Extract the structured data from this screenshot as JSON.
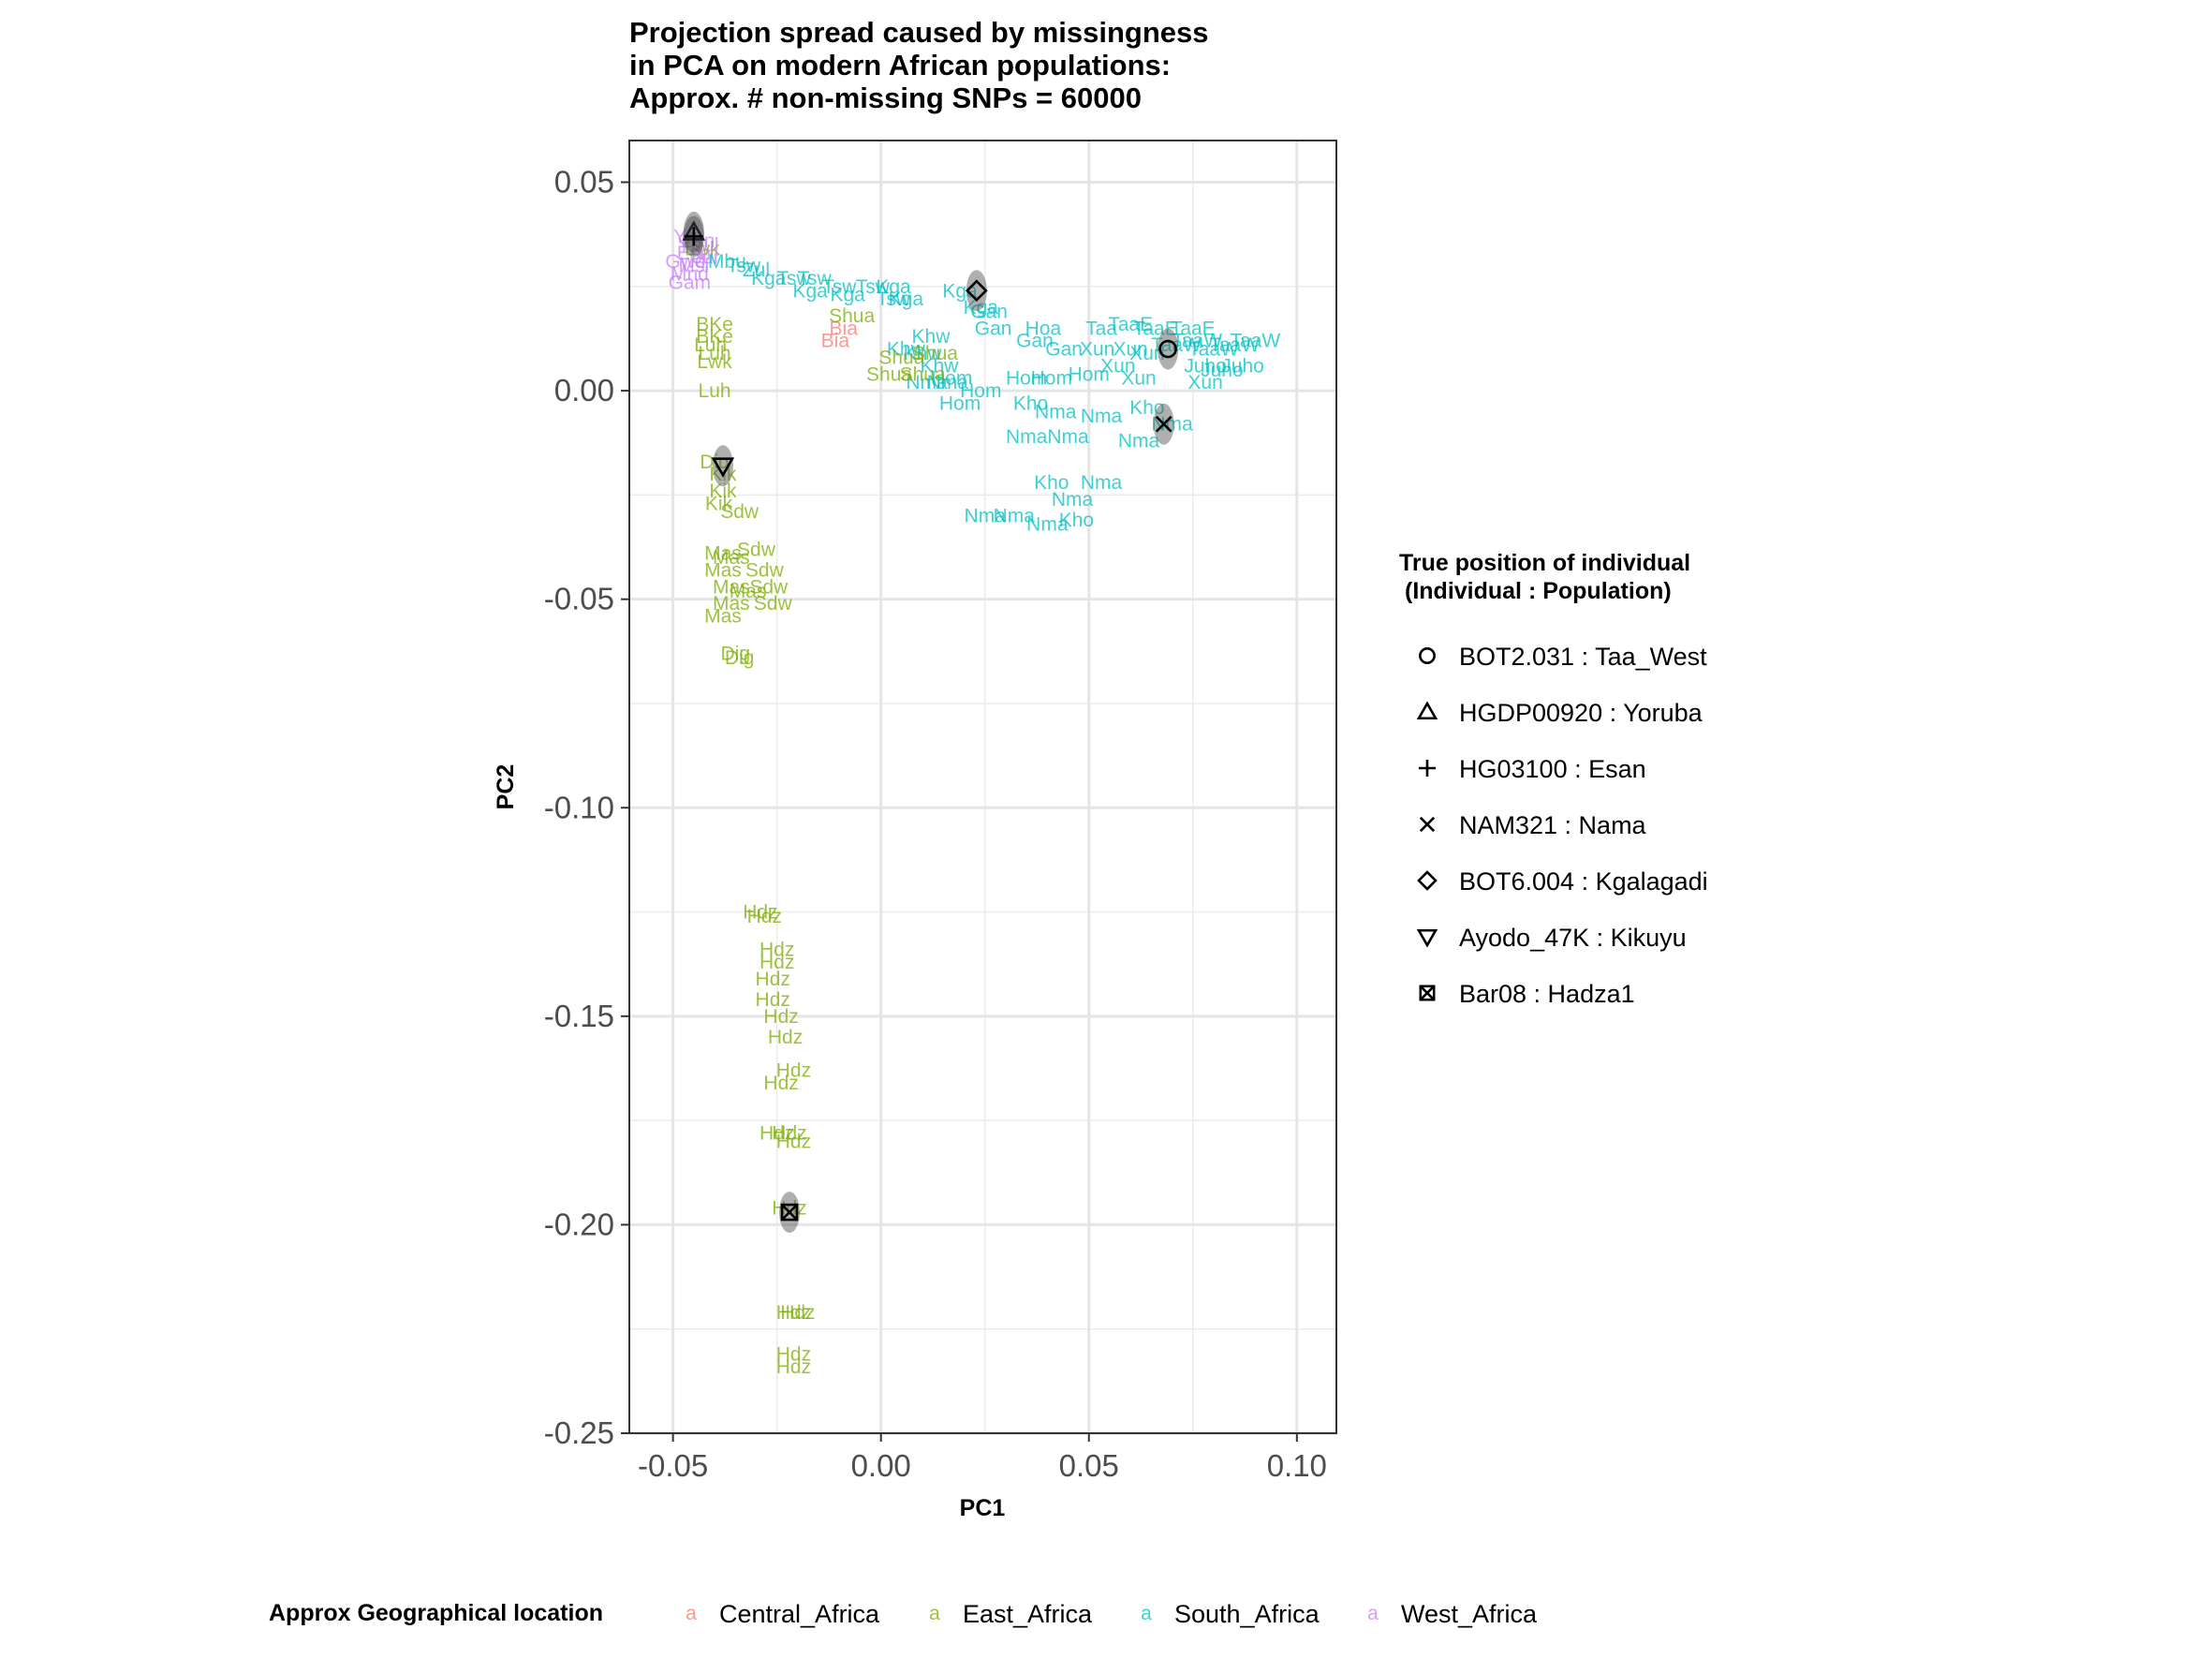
{
  "chart_data": {
    "type": "scatter",
    "title": "Projection spread caused by missingness\nin PCA on modern African populations:\nApprox. # non-missing SNPs = 60000",
    "xlabel": "PC1",
    "ylabel": "PC2",
    "xlim": [
      -0.0605,
      0.1095
    ],
    "ylim": [
      -0.25,
      0.06
    ],
    "xticks": [
      -0.05,
      0.0,
      0.05,
      0.1
    ],
    "xtick_labels": [
      "-0.05",
      "0.00",
      "0.05",
      "0.10"
    ],
    "yticks": [
      0.05,
      0.0,
      -0.05,
      -0.1,
      -0.15,
      -0.2,
      -0.25
    ],
    "ytick_labels": [
      "0.05",
      "0.00",
      "-0.05",
      "-0.10",
      "-0.15",
      "-0.20",
      "-0.25"
    ],
    "grid": true,
    "region_legend": {
      "title": "Approx Geographical location",
      "position": "bottom",
      "entries": [
        {
          "name": "Central_Africa",
          "color": "#F8766D"
        },
        {
          "name": "East_Africa",
          "color": "#7CAE00"
        },
        {
          "name": "South_Africa",
          "color": "#00BFC4"
        },
        {
          "name": "West_Africa",
          "color": "#C77CFF"
        }
      ]
    },
    "individual_legend": {
      "title": "True position of individual\n(Individual : Population)",
      "position": "right",
      "entries": [
        {
          "label": "BOT2.031 : Taa_West",
          "shape": "circle",
          "x": 0.069,
          "y": 0.01
        },
        {
          "label": "HGDP00920 : Yoruba",
          "shape": "triangle-up",
          "x": -0.045,
          "y": 0.038
        },
        {
          "label": "HG03100 : Esan",
          "shape": "plus",
          "x": -0.045,
          "y": 0.037
        },
        {
          "label": "NAM321 : Nama",
          "shape": "cross",
          "x": 0.068,
          "y": -0.008
        },
        {
          "label": "BOT6.004 : Kgalagadi",
          "shape": "diamond",
          "x": 0.023,
          "y": 0.024
        },
        {
          "label": "Ayodo_47K : Kikuyu",
          "shape": "triangle-down",
          "x": -0.038,
          "y": -0.018
        },
        {
          "label": "Bar08 : Hadza1",
          "shape": "square-cross",
          "x": -0.022,
          "y": -0.197
        }
      ]
    },
    "points": [
      {
        "label": "Yri",
        "region": "West_Africa",
        "x": -0.047,
        "y": 0.037
      },
      {
        "label": "Yri",
        "region": "West_Africa",
        "x": -0.046,
        "y": 0.035
      },
      {
        "label": "Esn",
        "region": "West_Africa",
        "x": -0.045,
        "y": 0.033
      },
      {
        "label": "Esn",
        "region": "West_Africa",
        "x": -0.044,
        "y": 0.036
      },
      {
        "label": "Gwd",
        "region": "West_Africa",
        "x": -0.047,
        "y": 0.031
      },
      {
        "label": "Msl",
        "region": "West_Africa",
        "x": -0.045,
        "y": 0.03
      },
      {
        "label": "Mnd",
        "region": "West_Africa",
        "x": -0.046,
        "y": 0.028
      },
      {
        "label": "Gam",
        "region": "West_Africa",
        "x": -0.046,
        "y": 0.026
      },
      {
        "label": "Lwk",
        "region": "East_Africa",
        "x": -0.043,
        "y": 0.034
      },
      {
        "label": "Jul",
        "region": "West_Africa",
        "x": -0.042,
        "y": 0.035
      },
      {
        "label": "Jur",
        "region": "West_Africa",
        "x": -0.042,
        "y": 0.032
      },
      {
        "label": "Mbu",
        "region": "South_Africa",
        "x": -0.037,
        "y": 0.031
      },
      {
        "label": "Tsw",
        "region": "South_Africa",
        "x": -0.033,
        "y": 0.03
      },
      {
        "label": "Zul",
        "region": "South_Africa",
        "x": -0.03,
        "y": 0.029
      },
      {
        "label": "Kga",
        "region": "South_Africa",
        "x": -0.027,
        "y": 0.027
      },
      {
        "label": "Tsw",
        "region": "South_Africa",
        "x": -0.021,
        "y": 0.027
      },
      {
        "label": "Tsw",
        "region": "South_Africa",
        "x": -0.016,
        "y": 0.027
      },
      {
        "label": "Kga",
        "region": "South_Africa",
        "x": -0.017,
        "y": 0.024
      },
      {
        "label": "Tsw",
        "region": "South_Africa",
        "x": -0.01,
        "y": 0.025
      },
      {
        "label": "Kga",
        "region": "South_Africa",
        "x": -0.008,
        "y": 0.023
      },
      {
        "label": "Tsw",
        "region": "South_Africa",
        "x": -0.002,
        "y": 0.025
      },
      {
        "label": "Kga",
        "region": "South_Africa",
        "x": 0.003,
        "y": 0.025
      },
      {
        "label": "Kga",
        "region": "South_Africa",
        "x": 0.006,
        "y": 0.022
      },
      {
        "label": "Tsw",
        "region": "South_Africa",
        "x": 0.003,
        "y": 0.022
      },
      {
        "label": "Kga",
        "region": "South_Africa",
        "x": 0.019,
        "y": 0.024
      },
      {
        "label": "Kga",
        "region": "South_Africa",
        "x": 0.024,
        "y": 0.02
      },
      {
        "label": "Gan",
        "region": "South_Africa",
        "x": 0.026,
        "y": 0.019
      },
      {
        "label": "Gan",
        "region": "South_Africa",
        "x": 0.027,
        "y": 0.015
      },
      {
        "label": "Hoa",
        "region": "South_Africa",
        "x": 0.039,
        "y": 0.015
      },
      {
        "label": "Gan",
        "region": "South_Africa",
        "x": 0.037,
        "y": 0.012
      },
      {
        "label": "Gan",
        "region": "South_Africa",
        "x": 0.044,
        "y": 0.01
      },
      {
        "label": "Taa",
        "region": "South_Africa",
        "x": 0.053,
        "y": 0.015
      },
      {
        "label": "TaaE",
        "region": "South_Africa",
        "x": 0.06,
        "y": 0.016
      },
      {
        "label": "TaaE",
        "region": "South_Africa",
        "x": 0.066,
        "y": 0.015
      },
      {
        "label": "TaaE",
        "region": "South_Africa",
        "x": 0.075,
        "y": 0.015
      },
      {
        "label": "Xun",
        "region": "South_Africa",
        "x": 0.052,
        "y": 0.01
      },
      {
        "label": "Xun",
        "region": "South_Africa",
        "x": 0.057,
        "y": 0.006
      },
      {
        "label": "Xun",
        "region": "South_Africa",
        "x": 0.06,
        "y": 0.01
      },
      {
        "label": "Xun",
        "region": "South_Africa",
        "x": 0.064,
        "y": 0.009
      },
      {
        "label": "Hom",
        "region": "South_Africa",
        "x": 0.05,
        "y": 0.004
      },
      {
        "label": "Xun",
        "region": "South_Africa",
        "x": 0.062,
        "y": 0.003
      },
      {
        "label": "TaaW",
        "region": "South_Africa",
        "x": 0.071,
        "y": 0.011
      },
      {
        "label": "TaaW",
        "region": "South_Africa",
        "x": 0.076,
        "y": 0.012
      },
      {
        "label": "TaaW",
        "region": "South_Africa",
        "x": 0.08,
        "y": 0.01
      },
      {
        "label": "TaaW",
        "region": "South_Africa",
        "x": 0.085,
        "y": 0.011
      },
      {
        "label": "TaaW",
        "region": "South_Africa",
        "x": 0.09,
        "y": 0.012
      },
      {
        "label": "Juho",
        "region": "South_Africa",
        "x": 0.078,
        "y": 0.006
      },
      {
        "label": "Juho",
        "region": "South_Africa",
        "x": 0.082,
        "y": 0.005
      },
      {
        "label": "Juho",
        "region": "South_Africa",
        "x": 0.087,
        "y": 0.006
      },
      {
        "label": "Xun",
        "region": "South_Africa",
        "x": 0.078,
        "y": 0.002
      },
      {
        "label": "Khw",
        "region": "South_Africa",
        "x": 0.012,
        "y": 0.013
      },
      {
        "label": "Khw",
        "region": "South_Africa",
        "x": 0.006,
        "y": 0.01
      },
      {
        "label": "Khw",
        "region": "South_Africa",
        "x": 0.01,
        "y": 0.009
      },
      {
        "label": "Khw",
        "region": "South_Africa",
        "x": 0.014,
        "y": 0.006
      },
      {
        "label": "Nma",
        "region": "South_Africa",
        "x": 0.011,
        "y": 0.002
      },
      {
        "label": "Nma",
        "region": "South_Africa",
        "x": 0.016,
        "y": 0.002
      },
      {
        "label": "Hom",
        "region": "South_Africa",
        "x": 0.017,
        "y": 0.003
      },
      {
        "label": "Hom",
        "region": "South_Africa",
        "x": 0.024,
        "y": 0.0
      },
      {
        "label": "Hom",
        "region": "South_Africa",
        "x": 0.019,
        "y": -0.003
      },
      {
        "label": "Hom",
        "region": "South_Africa",
        "x": 0.035,
        "y": 0.003
      },
      {
        "label": "Hom",
        "region": "South_Africa",
        "x": 0.041,
        "y": 0.003
      },
      {
        "label": "Kho",
        "region": "South_Africa",
        "x": 0.036,
        "y": -0.003
      },
      {
        "label": "Nma",
        "region": "South_Africa",
        "x": 0.042,
        "y": -0.005
      },
      {
        "label": "Nma",
        "region": "South_Africa",
        "x": 0.053,
        "y": -0.006
      },
      {
        "label": "Nma",
        "region": "South_Africa",
        "x": 0.035,
        "y": -0.011
      },
      {
        "label": "Nma",
        "region": "South_Africa",
        "x": 0.045,
        "y": -0.011
      },
      {
        "label": "Kho",
        "region": "South_Africa",
        "x": 0.064,
        "y": -0.004
      },
      {
        "label": "Nma",
        "region": "South_Africa",
        "x": 0.07,
        "y": -0.008
      },
      {
        "label": "Nma",
        "region": "South_Africa",
        "x": 0.062,
        "y": -0.012
      },
      {
        "label": "Kho",
        "region": "South_Africa",
        "x": 0.041,
        "y": -0.022
      },
      {
        "label": "Nma",
        "region": "South_Africa",
        "x": 0.053,
        "y": -0.022
      },
      {
        "label": "Nma",
        "region": "South_Africa",
        "x": 0.046,
        "y": -0.026
      },
      {
        "label": "Nma",
        "region": "South_Africa",
        "x": 0.025,
        "y": -0.03
      },
      {
        "label": "Nma",
        "region": "South_Africa",
        "x": 0.032,
        "y": -0.03
      },
      {
        "label": "Nma",
        "region": "South_Africa",
        "x": 0.04,
        "y": -0.032
      },
      {
        "label": "Kho",
        "region": "South_Africa",
        "x": 0.047,
        "y": -0.031
      },
      {
        "label": "Bia",
        "region": "Central_Africa",
        "x": -0.009,
        "y": 0.015
      },
      {
        "label": "Bia",
        "region": "Central_Africa",
        "x": -0.011,
        "y": 0.012
      },
      {
        "label": "Shua",
        "region": "East_Africa",
        "x": -0.007,
        "y": 0.018
      },
      {
        "label": "Shua",
        "region": "East_Africa",
        "x": 0.005,
        "y": 0.008
      },
      {
        "label": "Shua",
        "region": "East_Africa",
        "x": 0.002,
        "y": 0.004
      },
      {
        "label": "Shua",
        "region": "East_Africa",
        "x": 0.01,
        "y": 0.004
      },
      {
        "label": "Shua",
        "region": "East_Africa",
        "x": 0.013,
        "y": 0.009
      },
      {
        "label": "BKe",
        "region": "East_Africa",
        "x": -0.04,
        "y": 0.016
      },
      {
        "label": "BKe",
        "region": "East_Africa",
        "x": -0.04,
        "y": 0.013
      },
      {
        "label": "Luh",
        "region": "East_Africa",
        "x": -0.041,
        "y": 0.011
      },
      {
        "label": "Luh",
        "region": "East_Africa",
        "x": -0.04,
        "y": 0.009
      },
      {
        "label": "Lwk",
        "region": "East_Africa",
        "x": -0.04,
        "y": 0.007
      },
      {
        "label": "Luh",
        "region": "East_Africa",
        "x": -0.04,
        "y": 0.0
      },
      {
        "label": "Dig",
        "region": "East_Africa",
        "x": -0.04,
        "y": -0.017
      },
      {
        "label": "Kik",
        "region": "East_Africa",
        "x": -0.038,
        "y": -0.02
      },
      {
        "label": "Kik",
        "region": "East_Africa",
        "x": -0.038,
        "y": -0.024
      },
      {
        "label": "Kik",
        "region": "East_Africa",
        "x": -0.039,
        "y": -0.027
      },
      {
        "label": "Sdw",
        "region": "East_Africa",
        "x": -0.034,
        "y": -0.029
      },
      {
        "label": "Sdw",
        "region": "East_Africa",
        "x": -0.03,
        "y": -0.038
      },
      {
        "label": "Mas",
        "region": "East_Africa",
        "x": -0.038,
        "y": -0.039
      },
      {
        "label": "Mas",
        "region": "East_Africa",
        "x": -0.036,
        "y": -0.04
      },
      {
        "label": "Mas",
        "region": "East_Africa",
        "x": -0.038,
        "y": -0.043
      },
      {
        "label": "Sdw",
        "region": "East_Africa",
        "x": -0.028,
        "y": -0.043
      },
      {
        "label": "Mas",
        "region": "East_Africa",
        "x": -0.036,
        "y": -0.047
      },
      {
        "label": "Mas",
        "region": "East_Africa",
        "x": -0.032,
        "y": -0.048
      },
      {
        "label": "Sdw",
        "region": "East_Africa",
        "x": -0.027,
        "y": -0.047
      },
      {
        "label": "Mas",
        "region": "East_Africa",
        "x": -0.036,
        "y": -0.051
      },
      {
        "label": "Sdw",
        "region": "East_Africa",
        "x": -0.026,
        "y": -0.051
      },
      {
        "label": "Mas",
        "region": "East_Africa",
        "x": -0.038,
        "y": -0.054
      },
      {
        "label": "Dig",
        "region": "East_Africa",
        "x": -0.035,
        "y": -0.063
      },
      {
        "label": "Dig",
        "region": "East_Africa",
        "x": -0.034,
        "y": -0.064
      },
      {
        "label": "Hdz",
        "region": "East_Africa",
        "x": -0.029,
        "y": -0.125
      },
      {
        "label": "Hdz",
        "region": "East_Africa",
        "x": -0.028,
        "y": -0.126
      },
      {
        "label": "Hdz",
        "region": "East_Africa",
        "x": -0.025,
        "y": -0.134
      },
      {
        "label": "Hdz",
        "region": "East_Africa",
        "x": -0.025,
        "y": -0.137
      },
      {
        "label": "Hdz",
        "region": "East_Africa",
        "x": -0.026,
        "y": -0.141
      },
      {
        "label": "Hdz",
        "region": "East_Africa",
        "x": -0.026,
        "y": -0.146
      },
      {
        "label": "Hdz",
        "region": "East_Africa",
        "x": -0.024,
        "y": -0.15
      },
      {
        "label": "Hdz",
        "region": "East_Africa",
        "x": -0.023,
        "y": -0.155
      },
      {
        "label": "Hdz",
        "region": "East_Africa",
        "x": -0.021,
        "y": -0.163
      },
      {
        "label": "Hdz",
        "region": "East_Africa",
        "x": -0.024,
        "y": -0.166
      },
      {
        "label": "Hdz",
        "region": "East_Africa",
        "x": -0.025,
        "y": -0.178
      },
      {
        "label": "Hdz",
        "region": "East_Africa",
        "x": -0.022,
        "y": -0.178
      },
      {
        "label": "Hdz",
        "region": "East_Africa",
        "x": -0.021,
        "y": -0.18
      },
      {
        "label": "Hdz",
        "region": "East_Africa",
        "x": -0.022,
        "y": -0.196
      },
      {
        "label": "Hdz",
        "region": "East_Africa",
        "x": -0.021,
        "y": -0.221
      },
      {
        "label": "Hdz",
        "region": "East_Africa",
        "x": -0.02,
        "y": -0.221
      },
      {
        "label": "Hdz",
        "region": "East_Africa",
        "x": -0.021,
        "y": -0.231
      },
      {
        "label": "Hdz",
        "region": "East_Africa",
        "x": -0.021,
        "y": -0.234
      }
    ]
  }
}
